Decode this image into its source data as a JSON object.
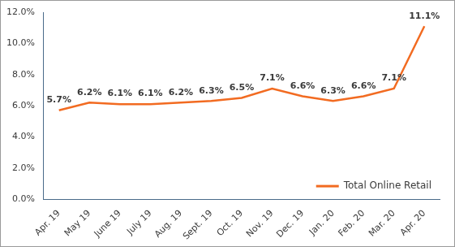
{
  "chart_data": {
    "type": "line",
    "categories": [
      "Apr. 19",
      "May 19",
      "June 19",
      "July 19",
      "Aug. 19",
      "Sept. 19",
      "Oct. 19",
      "Nov. 19",
      "Dec. 19",
      "Jan. 20",
      "Feb. 20",
      "Mar. 20",
      "Apr. 20"
    ],
    "series": [
      {
        "name": "Total Online Retail",
        "color": "#f26b21",
        "values": [
          5.7,
          6.2,
          6.1,
          6.1,
          6.2,
          6.3,
          6.5,
          7.1,
          6.6,
          6.3,
          6.6,
          7.1,
          11.1
        ],
        "value_labels": [
          "5.7%",
          "6.2%",
          "6.1%",
          "6.1%",
          "6.2%",
          "6.3%",
          "6.5%",
          "7.1%",
          "6.6%",
          "6.3%",
          "6.6%",
          "7.1%",
          "11.1%"
        ]
      }
    ],
    "ylim": [
      0,
      12
    ],
    "yticks": [
      {
        "value": 0,
        "label": "0.0%"
      },
      {
        "value": 2,
        "label": "2.0%"
      },
      {
        "value": 4,
        "label": "4.0%"
      },
      {
        "value": 6,
        "label": "6.0%"
      },
      {
        "value": 8,
        "label": "8.0%"
      },
      {
        "value": 10,
        "label": "10.0%"
      },
      {
        "value": 12,
        "label": "12.0%"
      }
    ],
    "grid": false,
    "legend": "lower right",
    "data_labels": true
  }
}
